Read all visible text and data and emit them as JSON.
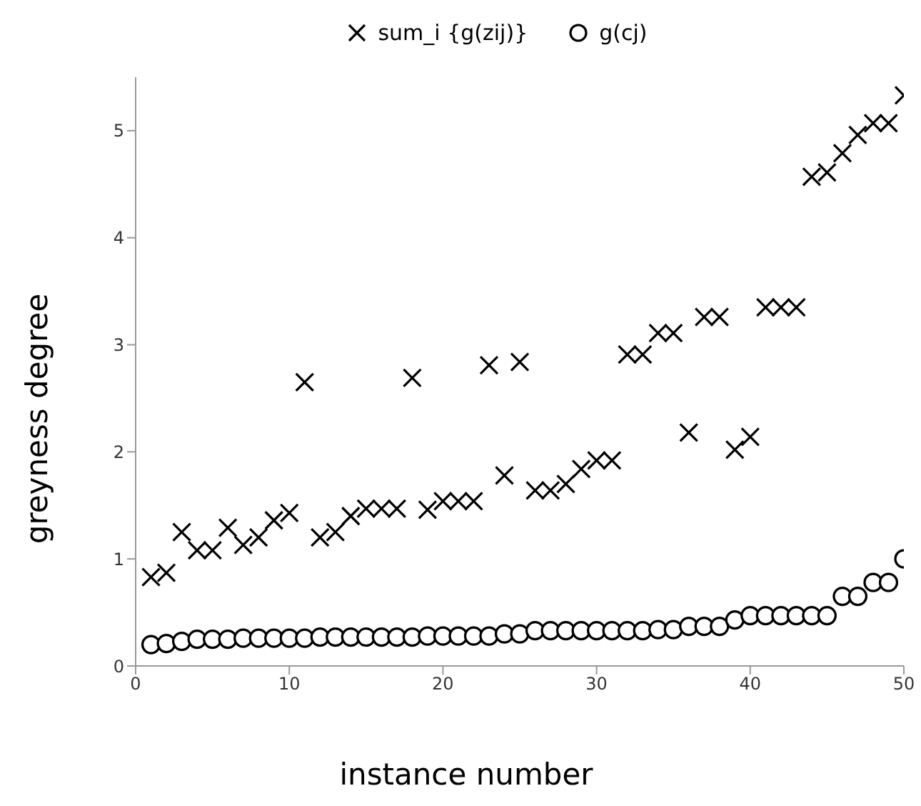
{
  "chart_data": {
    "type": "scatter",
    "xlabel": "instance number",
    "ylabel": "greyness degree",
    "x": [
      1,
      2,
      3,
      4,
      5,
      6,
      7,
      8,
      9,
      10,
      11,
      12,
      13,
      14,
      15,
      16,
      17,
      18,
      19,
      20,
      21,
      22,
      23,
      24,
      25,
      26,
      27,
      28,
      29,
      30,
      31,
      32,
      33,
      34,
      35,
      36,
      37,
      38,
      39,
      40,
      41,
      42,
      43,
      44,
      45,
      46,
      47,
      48,
      49,
      50
    ],
    "series": [
      {
        "name": "sum_i {g(zij)}",
        "color": "#000000",
        "marker": "cross",
        "values": [
          0.83,
          0.87,
          1.25,
          1.08,
          1.08,
          1.29,
          1.13,
          1.2,
          1.36,
          1.43,
          2.65,
          1.2,
          1.25,
          1.4,
          1.47,
          1.47,
          1.47,
          2.69,
          1.46,
          1.54,
          1.54,
          1.54,
          2.81,
          1.78,
          2.84,
          1.64,
          1.64,
          1.7,
          1.84,
          1.92,
          1.92,
          2.91,
          2.91,
          3.11,
          3.11,
          2.18,
          3.26,
          3.26,
          2.02,
          2.14,
          3.35,
          3.35,
          3.35,
          4.57,
          4.61,
          4.79,
          4.96,
          5.07,
          5.07,
          5.33
        ]
      },
      {
        "name": "g(cj)",
        "color": "#000000",
        "marker": "circle",
        "values": [
          0.2,
          0.21,
          0.23,
          0.25,
          0.25,
          0.25,
          0.26,
          0.26,
          0.26,
          0.26,
          0.26,
          0.27,
          0.27,
          0.27,
          0.27,
          0.27,
          0.27,
          0.27,
          0.28,
          0.28,
          0.28,
          0.28,
          0.28,
          0.3,
          0.3,
          0.33,
          0.33,
          0.33,
          0.33,
          0.33,
          0.33,
          0.33,
          0.33,
          0.34,
          0.34,
          0.37,
          0.37,
          0.37,
          0.43,
          0.47,
          0.47,
          0.47,
          0.47,
          0.47,
          0.47,
          0.65,
          0.65,
          0.78,
          0.78,
          1.0
        ]
      }
    ],
    "xlim": [
      0,
      50
    ],
    "xticks": [
      0,
      10,
      20,
      30,
      40,
      50
    ],
    "ylim": [
      0,
      5.5
    ],
    "yticks": [
      0,
      1,
      2,
      3,
      4,
      5
    ],
    "grid": false,
    "legend": "top"
  }
}
